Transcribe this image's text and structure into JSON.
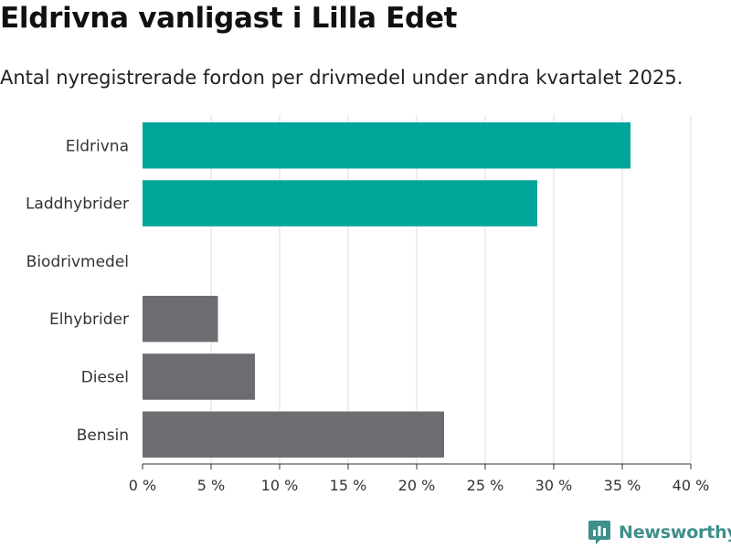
{
  "header": {
    "title": "Eldrivna vanligast i Lilla Edet",
    "subtitle": "Antal nyregistrerade fordon per drivmedel under andra kvartalet 2025."
  },
  "brand": {
    "name": "Newsworthy",
    "icon": "newsworthy-logo-icon",
    "color": "#3f8f8a"
  },
  "chart_data": {
    "type": "bar",
    "orientation": "horizontal",
    "categories": [
      "Eldrivna",
      "Laddhybrider",
      "Biodrivmedel",
      "Elhybrider",
      "Diesel",
      "Bensin"
    ],
    "values": [
      35.6,
      28.8,
      0,
      5.5,
      8.2,
      22.0
    ],
    "colors": [
      "#00a59a",
      "#00a59a",
      "#00a59a",
      "#6d6c71",
      "#6d6c71",
      "#6d6c71"
    ],
    "xlim": [
      0,
      40
    ],
    "xticks": [
      0,
      5,
      10,
      15,
      20,
      25,
      30,
      35,
      40
    ],
    "tick_suffix": " %",
    "grid": true
  }
}
